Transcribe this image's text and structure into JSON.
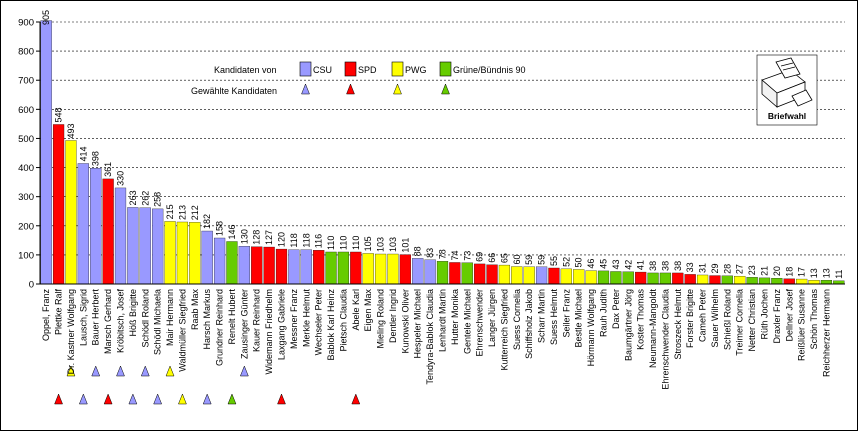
{
  "chart_data": {
    "type": "bar",
    "ylim": [
      0,
      900
    ],
    "yticks": [
      0,
      100,
      200,
      300,
      400,
      500,
      600,
      700,
      800,
      900
    ],
    "grid": true,
    "party_colors": {
      "CSU": "#9999ff",
      "SPD": "#ff0000",
      "PWG": "#ffff00",
      "Gruene": "#66cc00"
    },
    "legend": {
      "title": "Kandidaten von",
      "elected_label": "Gewählte Kandidaten",
      "placement": "top-right",
      "entries": [
        {
          "key": "CSU",
          "label": "CSU",
          "color": "#9999ff"
        },
        {
          "key": "SPD",
          "label": "SPD",
          "color": "#ff0000"
        },
        {
          "key": "PWG",
          "label": "PWG",
          "color": "#ffff00"
        },
        {
          "key": "Gruene",
          "label": "Grüne/Bündnis 90",
          "color": "#66cc00"
        }
      ]
    },
    "briefwahl": {
      "label": "Briefwahl",
      "icon": "ballot-box-icon"
    },
    "bars": [
      {
        "name": "Oppel, Franz",
        "value": 905,
        "party": "CSU",
        "elected": false
      },
      {
        "name": "Plettke Ralf",
        "value": 548,
        "party": "SPD",
        "elected": true
      },
      {
        "name": "Dr. Kastner Wolfgang",
        "value": 493,
        "party": "PWG",
        "elected": true
      },
      {
        "name": "Lausch, Sigrid",
        "value": 414,
        "party": "CSU",
        "elected": true
      },
      {
        "name": "Bauer Herbert",
        "value": 398,
        "party": "CSU",
        "elected": true
      },
      {
        "name": "Marsch Gerhard",
        "value": 361,
        "party": "SPD",
        "elected": true
      },
      {
        "name": "Kröbitsch, Josef",
        "value": 330,
        "party": "CSU",
        "elected": true
      },
      {
        "name": "Höß Brigitte",
        "value": 263,
        "party": "CSU",
        "elected": true
      },
      {
        "name": "Schödl Roland",
        "value": 262,
        "party": "CSU",
        "elected": true
      },
      {
        "name": "Schödl Michaela",
        "value": 258,
        "party": "CSU",
        "elected": true
      },
      {
        "name": "Mair Hermann",
        "value": 215,
        "party": "PWG",
        "elected": true
      },
      {
        "name": "Waldmüller Siegfried",
        "value": 213,
        "party": "PWG",
        "elected": true
      },
      {
        "name": "Raab Max",
        "value": 212,
        "party": "PWG",
        "elected": false
      },
      {
        "name": "Harsch Markus",
        "value": 182,
        "party": "CSU",
        "elected": true
      },
      {
        "name": "Grundner Reinhard",
        "value": 158,
        "party": "CSU",
        "elected": false
      },
      {
        "name": "Renelt Hubert",
        "value": 146,
        "party": "Gruene",
        "elected": true
      },
      {
        "name": "Zausinger Günter",
        "value": 130,
        "party": "CSU",
        "elected": true
      },
      {
        "name": "Kauer Reinhard",
        "value": 128,
        "party": "SPD",
        "elected": false
      },
      {
        "name": "Widemann Friedhelm",
        "value": 127,
        "party": "SPD",
        "elected": false
      },
      {
        "name": "Laxgang Gabriele",
        "value": 120,
        "party": "SPD",
        "elected": true
      },
      {
        "name": "Messner Franz",
        "value": 118,
        "party": "CSU",
        "elected": false
      },
      {
        "name": "Merkle Helmut",
        "value": 118,
        "party": "CSU",
        "elected": false
      },
      {
        "name": "Wechseler Peter",
        "value": 116,
        "party": "SPD",
        "elected": false
      },
      {
        "name": "Bablok Karl Heinz",
        "value": 110,
        "party": "Gruene",
        "elected": false
      },
      {
        "name": "Pietsch Claudia",
        "value": 110,
        "party": "Gruene",
        "elected": false
      },
      {
        "name": "Abele Karl",
        "value": 110,
        "party": "SPD",
        "elected": true
      },
      {
        "name": "Eigen Max",
        "value": 105,
        "party": "PWG",
        "elected": false
      },
      {
        "name": "Mieling Roland",
        "value": 103,
        "party": "PWG",
        "elected": false
      },
      {
        "name": "Dentler Ingrid",
        "value": 103,
        "party": "PWG",
        "elected": false
      },
      {
        "name": "Kunowski Oliver",
        "value": 101,
        "party": "SPD",
        "elected": false
      },
      {
        "name": "Hespeler Michael",
        "value": 88,
        "party": "CSU",
        "elected": false
      },
      {
        "name": "Tendyra-Bablok Claudia",
        "value": 83,
        "party": "CSU",
        "elected": false
      },
      {
        "name": "Lenhardt Martin",
        "value": 78,
        "party": "Gruene",
        "elected": false
      },
      {
        "name": "Hutter Monika",
        "value": 74,
        "party": "SPD",
        "elected": false
      },
      {
        "name": "Gentele Michael",
        "value": 73,
        "party": "Gruene",
        "elected": false
      },
      {
        "name": "Ehrenschwender",
        "value": 69,
        "party": "SPD",
        "elected": false
      },
      {
        "name": "Langer Jürgen",
        "value": 66,
        "party": "SPD",
        "elected": false
      },
      {
        "name": "Kutterreich Siegfried",
        "value": 65,
        "party": "PWG",
        "elected": false
      },
      {
        "name": "Suess Cornelia",
        "value": 60,
        "party": "PWG",
        "elected": false
      },
      {
        "name": "Schiffsholz Jakob",
        "value": 59,
        "party": "PWG",
        "elected": false
      },
      {
        "name": "Scharr Martin",
        "value": 59,
        "party": "CSU",
        "elected": false
      },
      {
        "name": "Suess Helmut",
        "value": 55,
        "party": "SPD",
        "elected": false
      },
      {
        "name": "Seiler Franz",
        "value": 52,
        "party": "PWG",
        "elected": false
      },
      {
        "name": "Bestle Michael",
        "value": 50,
        "party": "PWG",
        "elected": false
      },
      {
        "name": "Hörmann Wolfgang",
        "value": 46,
        "party": "PWG",
        "elected": false
      },
      {
        "name": "Rauh Judith",
        "value": 45,
        "party": "Gruene",
        "elected": false
      },
      {
        "name": "Dax Peter",
        "value": 43,
        "party": "Gruene",
        "elected": false
      },
      {
        "name": "Baumgärtner Jörg",
        "value": 42,
        "party": "Gruene",
        "elected": false
      },
      {
        "name": "Koster Thomas",
        "value": 41,
        "party": "SPD",
        "elected": false
      },
      {
        "name": "Neumann-Mangoldt",
        "value": 38,
        "party": "Gruene",
        "elected": false
      },
      {
        "name": "Ehrenschwender Claudia",
        "value": 38,
        "party": "Gruene",
        "elected": false
      },
      {
        "name": "Stroszeck Helmut",
        "value": 38,
        "party": "SPD",
        "elected": false
      },
      {
        "name": "Forster Brigitte",
        "value": 33,
        "party": "SPD",
        "elected": false
      },
      {
        "name": "Cameh Peter",
        "value": 31,
        "party": "PWG",
        "elected": false
      },
      {
        "name": "Sauer Wilhelm",
        "value": 29,
        "party": "SPD",
        "elected": false
      },
      {
        "name": "Schießl Roland",
        "value": 28,
        "party": "Gruene",
        "elected": false
      },
      {
        "name": "Treimer Cornelia",
        "value": 27,
        "party": "PWG",
        "elected": false
      },
      {
        "name": "Netter Christian",
        "value": 23,
        "party": "Gruene",
        "elected": false
      },
      {
        "name": "Rüth Jochen",
        "value": 21,
        "party": "Gruene",
        "elected": false
      },
      {
        "name": "Draxler Franz",
        "value": 20,
        "party": "Gruene",
        "elected": false
      },
      {
        "name": "Dellner Josef",
        "value": 18,
        "party": "SPD",
        "elected": false
      },
      {
        "name": "Reißlüer Susanne",
        "value": 17,
        "party": "PWG",
        "elected": false
      },
      {
        "name": "Schön Thomas",
        "value": 13,
        "party": "PWG",
        "elected": false
      },
      {
        "name": "Reichherzer Hermann",
        "value": 13,
        "party": "Gruene",
        "elected": false
      },
      {
        "name": "",
        "value": 11,
        "party": "Gruene",
        "elected": false
      }
    ]
  }
}
